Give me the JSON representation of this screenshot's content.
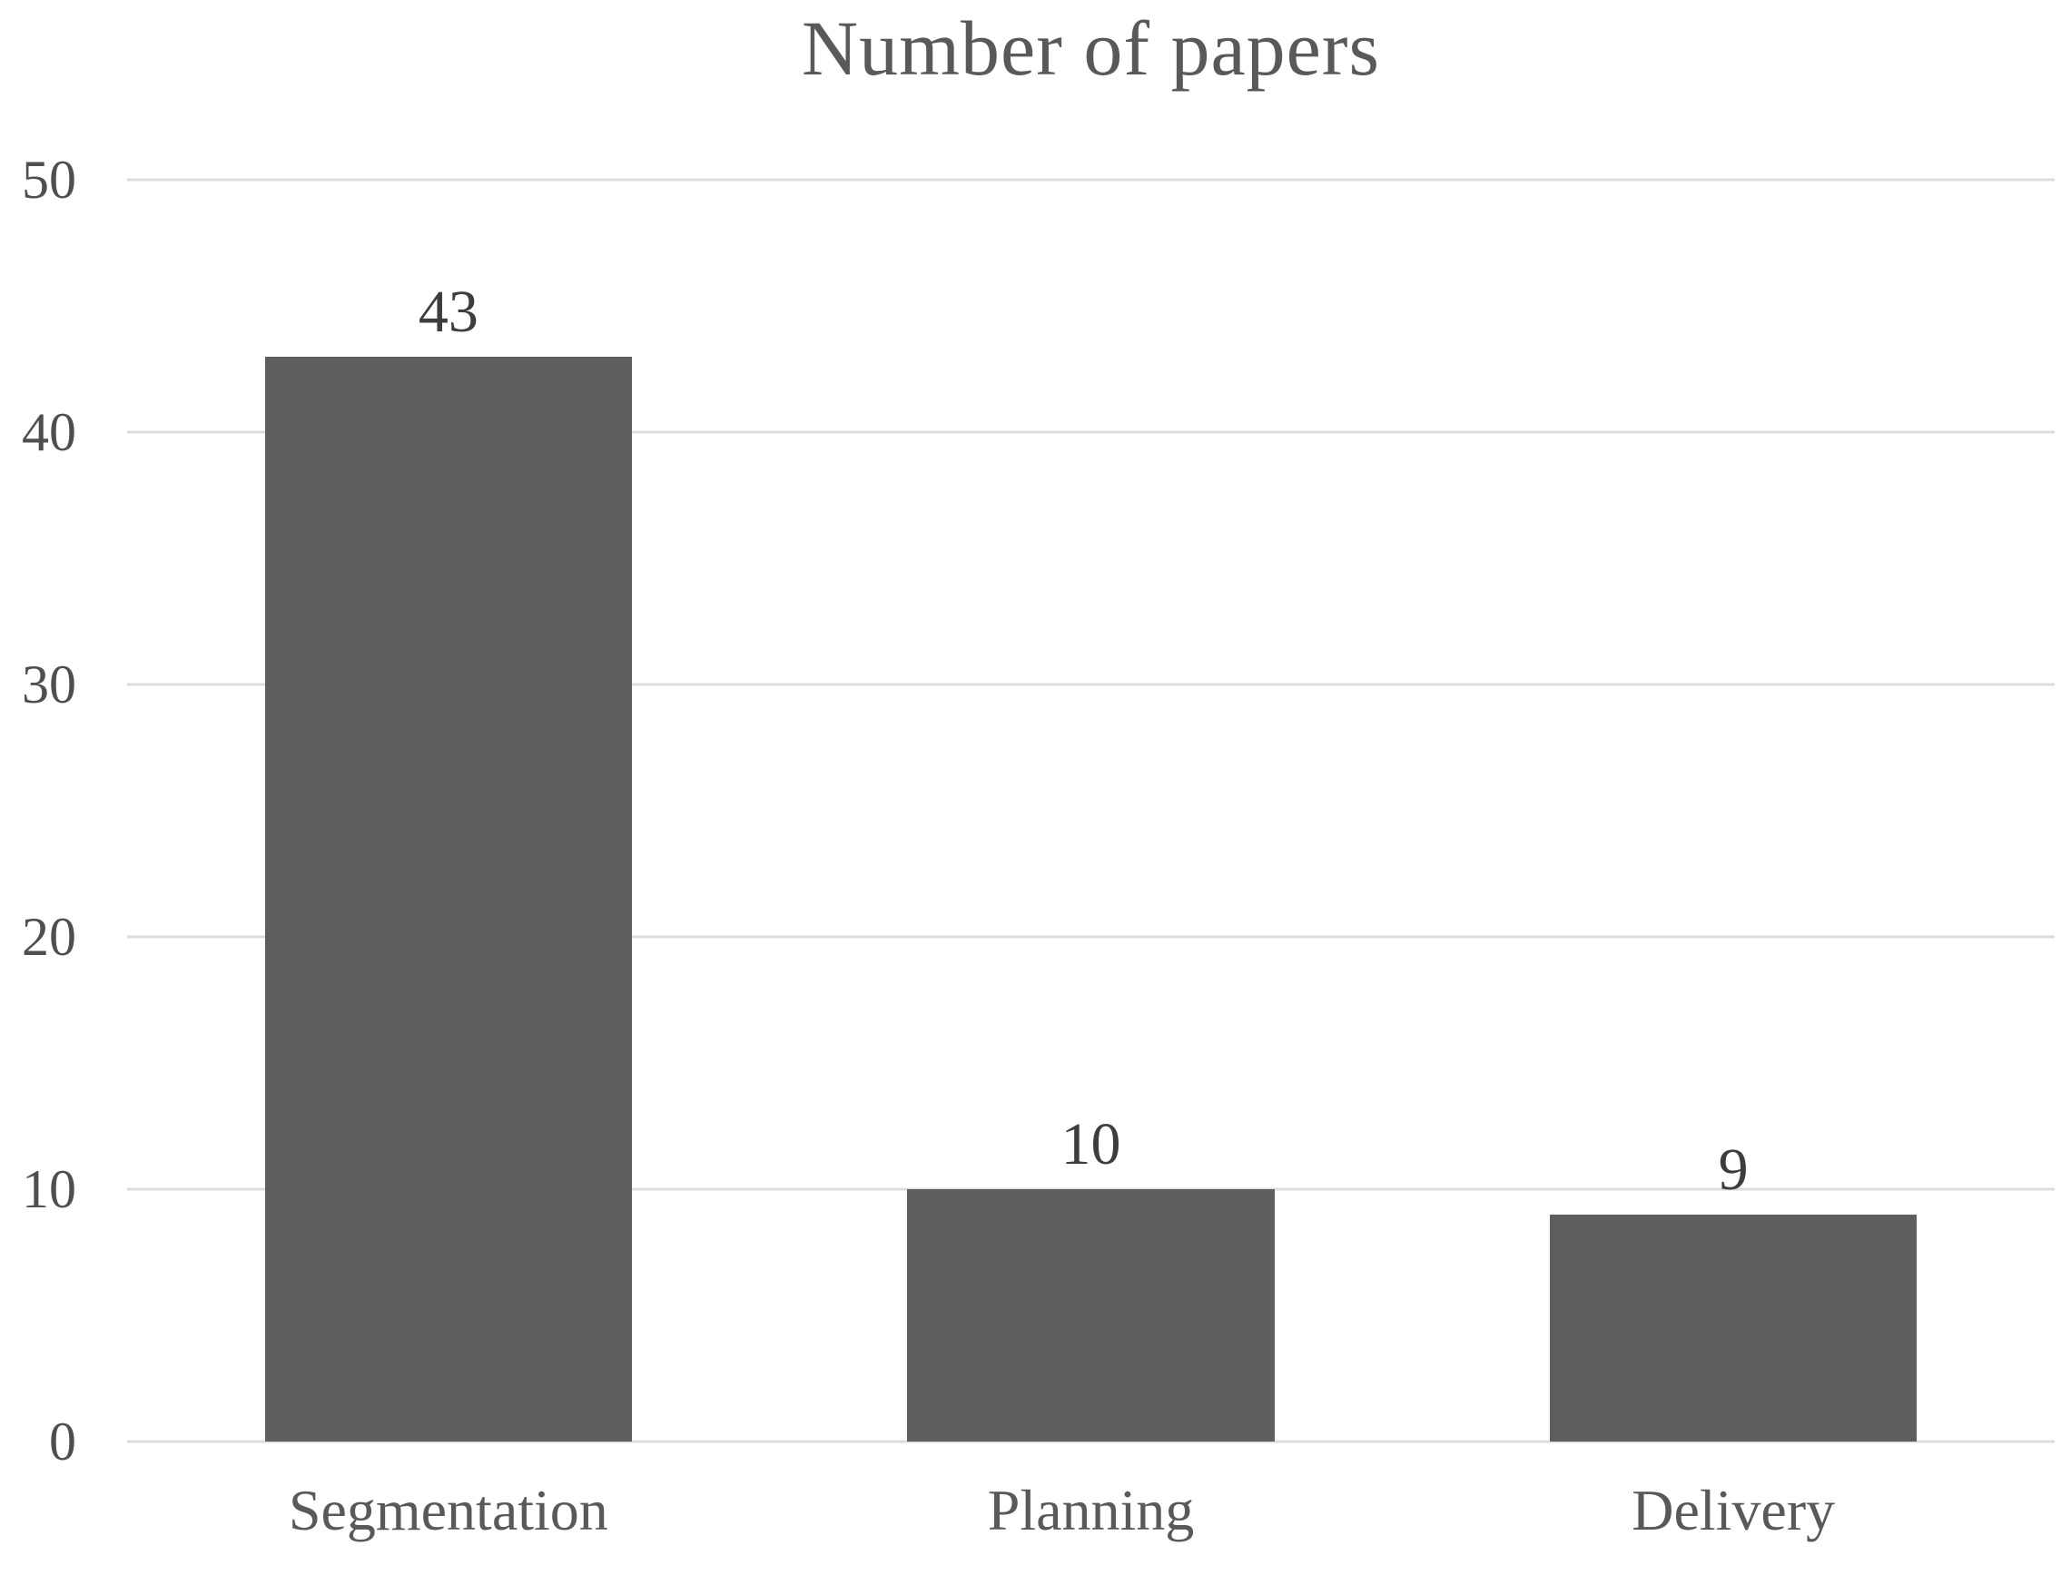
{
  "chart_data": {
    "type": "bar",
    "title": "Number of papers",
    "categories": [
      "Segmentation",
      "Planning",
      "Delivery"
    ],
    "values": [
      43,
      10,
      9
    ],
    "xlabel": "",
    "ylabel": "",
    "ylim": [
      0,
      50
    ],
    "yticks": [
      50,
      40,
      30,
      20,
      10,
      0
    ],
    "grid": "horizontal gridlines every 10, no vertical axis line",
    "legend": "none",
    "bar_color": "#5e5e5e",
    "gridline_color": "#dcdcdc",
    "title_color": "#595959",
    "tick_label_color": "#4f4f4f",
    "value_label_color": "#3d3d3d",
    "background_color": "#ffffff"
  }
}
